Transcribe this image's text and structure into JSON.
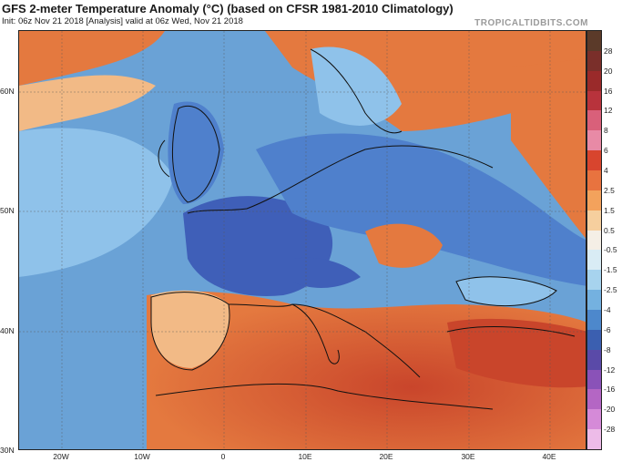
{
  "header": {
    "title": "GFS 2-meter Temperature Anomaly (°C) (based on CFSR 1981-2010 Climatology)",
    "subtitle": "Init: 06z Nov 21 2018   [Analysis]   valid at 06z Wed, Nov 21 2018",
    "brand": "TROPICALTIDBITS.COM"
  },
  "map": {
    "lat_labels": [
      "60N",
      "50N",
      "40N",
      "30N"
    ],
    "lon_labels": [
      "20W",
      "10W",
      "0",
      "10E",
      "20E",
      "30E",
      "40E"
    ],
    "colors": {
      "sea_blue": "#6aa2d6",
      "cold_deep": "#3f5fb8",
      "cold_mid": "#4f80cc",
      "cold_light": "#8fc2ea",
      "neutral": "#f3f0e6",
      "warm_light": "#f2ba86",
      "warm_mid": "#e4793f",
      "warm_deep": "#c9452b",
      "coast": "#111111"
    }
  },
  "colorbar": {
    "ticks": [
      "28",
      "20",
      "16",
      "12",
      "8",
      "6",
      "4",
      "2.5",
      "1.5",
      "0.5",
      "-0.5",
      "-1.5",
      "-2.5",
      "-4",
      "-6",
      "-8",
      "-12",
      "-16",
      "-20",
      "-28"
    ],
    "colors": [
      "#5b3a29",
      "#7a2f2a",
      "#9a2a2a",
      "#b8333c",
      "#d9607a",
      "#e88aa6",
      "#d8452e",
      "#e8733f",
      "#f3a25c",
      "#f6cf9e",
      "#f5efe6",
      "#d9ecf5",
      "#a7d3ee",
      "#74b1e0",
      "#4d88cc",
      "#3b5fb0",
      "#5a4aa8",
      "#8a52b8",
      "#b466c4",
      "#d58ad8",
      "#edbbe8"
    ]
  }
}
